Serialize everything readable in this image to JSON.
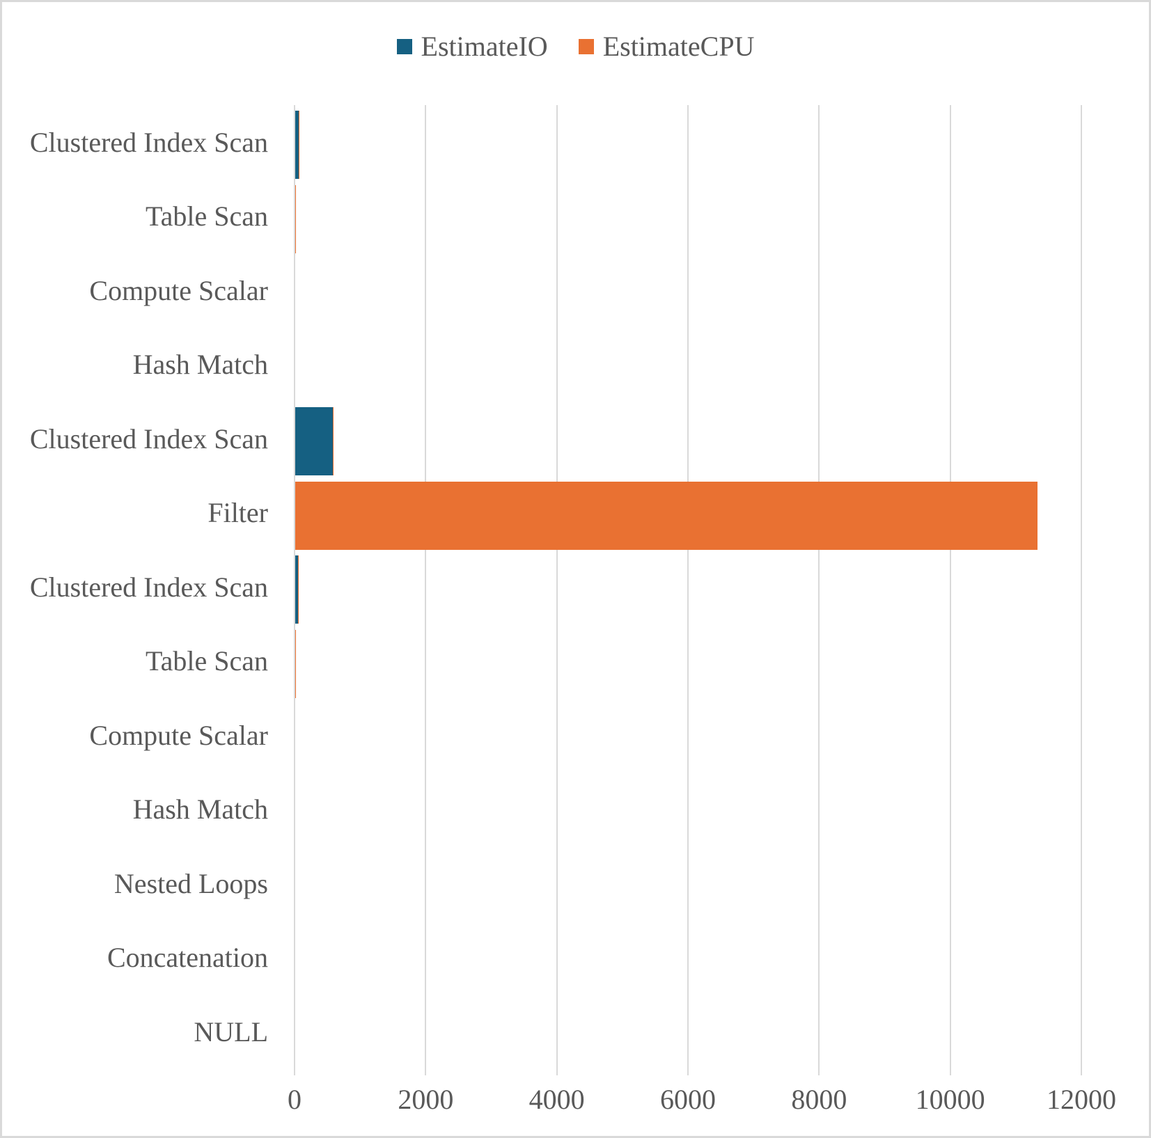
{
  "legend": [
    {
      "label": "EstimateIO",
      "color": "#156082"
    },
    {
      "label": "EstimateCPU",
      "color": "#E97132"
    }
  ],
  "chart_data": {
    "type": "bar",
    "orientation": "horizontal",
    "title": "",
    "xlabel": "",
    "ylabel": "",
    "categories": [
      "Clustered Index Scan",
      "Table Scan",
      "Compute Scalar",
      "Hash Match",
      "Clustered Index Scan",
      "Filter",
      "Clustered Index Scan",
      "Table Scan",
      "Compute Scalar",
      "Hash Match",
      "Nested Loops",
      "Concatenation",
      "NULL"
    ],
    "series": [
      {
        "name": "EstimateIO",
        "color": "#156082",
        "values": [
          53,
          0,
          0,
          0,
          570,
          0,
          46,
          0,
          0,
          0,
          0,
          0,
          0
        ]
      },
      {
        "name": "EstimateCPU",
        "color": "#E97132",
        "values": [
          64,
          8,
          0,
          0,
          580,
          11320,
          53,
          8,
          0,
          0,
          0,
          0,
          0
        ]
      }
    ],
    "x_ticks": [
      0,
      2000,
      4000,
      6000,
      8000,
      10000,
      12000
    ],
    "xlim": [
      0,
      12000
    ],
    "legend_position": "top",
    "grid": "vertical",
    "gridline_color": "#D9D9D9",
    "text_color": "#595959"
  }
}
